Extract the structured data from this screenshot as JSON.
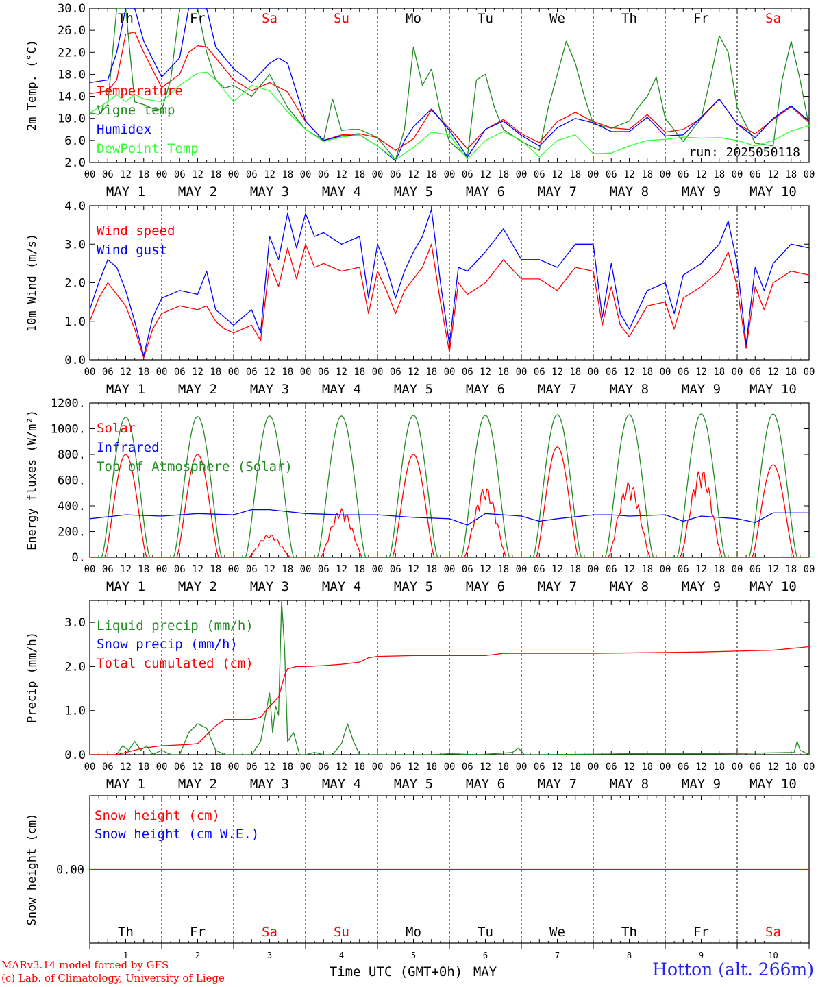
{
  "chart_data": [
    {
      "type": "line",
      "ylabel": "2m Temp. (°C)",
      "ylim": [
        2,
        30
      ],
      "yticks": [
        "2.0",
        "6.0",
        "10.0",
        "14.0",
        "18.0",
        "22.0",
        "26.0",
        "30.0"
      ],
      "legend": [
        "Temperature",
        "Vigne temp",
        "Humidex",
        "DewPoint Temp"
      ],
      "annotation": "run: 2025050118",
      "x_unit": "hours since May 1 00 UTC",
      "series": [
        {
          "name": "Temperature",
          "color": "#ff0000",
          "x": [
            0,
            6,
            9,
            12,
            15,
            18,
            24,
            30,
            33,
            36,
            39,
            42,
            48,
            54,
            60,
            66,
            72,
            78,
            84,
            90,
            96,
            102,
            108,
            114,
            120,
            126,
            132,
            138,
            144,
            150,
            156,
            162,
            168,
            174,
            180,
            186,
            192,
            198,
            204,
            210,
            216,
            222,
            228,
            234,
            240
          ],
          "values": [
            14.5,
            15,
            17,
            25.3,
            25.7,
            22,
            15.6,
            18,
            22,
            23.2,
            23,
            21,
            17,
            15,
            16.5,
            14.8,
            9.4,
            6,
            7,
            7.2,
            6.5,
            4.2,
            6.3,
            11.5,
            8.2,
            4.5,
            8,
            9.8,
            7.2,
            5.6,
            9.4,
            11.1,
            9.4,
            8.3,
            8,
            10.7,
            7.5,
            8,
            10,
            13.5,
            9,
            7.2,
            9.8,
            12.1,
            9.2
          ]
        },
        {
          "name": "Vigne temp",
          "color": "#228b22",
          "x": [
            0,
            3,
            6,
            9,
            12,
            15,
            18,
            21,
            24,
            27,
            30,
            33,
            36,
            39,
            42,
            45,
            48,
            54,
            60,
            63,
            66,
            72,
            78,
            81,
            84,
            87,
            90,
            96,
            102,
            105,
            108,
            111,
            114,
            117,
            120,
            126,
            129,
            132,
            135,
            138,
            144,
            150,
            153,
            156,
            159,
            162,
            165,
            168,
            174,
            180,
            183,
            186,
            189,
            192,
            198,
            204,
            207,
            210,
            213,
            216,
            222,
            228,
            231,
            234,
            237,
            240
          ],
          "values": [
            11,
            10.7,
            12.5,
            30,
            30,
            13,
            12.5,
            11.8,
            11.5,
            17,
            30,
            30,
            30,
            22,
            17,
            15.5,
            16,
            14,
            18,
            15,
            12,
            8,
            6,
            13.5,
            7.8,
            8,
            8,
            6.5,
            2.5,
            8,
            23,
            16,
            19,
            11,
            5.8,
            3,
            17,
            18,
            12,
            8,
            5.8,
            4.2,
            12,
            18,
            24,
            20,
            14,
            9,
            8.2,
            9.5,
            12,
            14,
            17.5,
            10,
            5.8,
            10,
            17,
            25,
            22,
            12,
            5.5,
            5,
            17,
            24,
            17,
            8.5
          ]
        },
        {
          "name": "Humidex",
          "color": "#0000ff",
          "x": [
            0,
            6,
            9,
            12,
            15,
            18,
            24,
            30,
            33,
            36,
            39,
            42,
            48,
            54,
            60,
            63,
            66,
            72,
            78,
            84,
            90,
            96,
            102,
            105,
            108,
            114,
            120,
            126,
            132,
            138,
            144,
            150,
            156,
            162,
            168,
            174,
            180,
            186,
            192,
            198,
            204,
            210,
            216,
            222,
            228,
            234,
            240
          ],
          "values": [
            16.5,
            17,
            22,
            30,
            30,
            24,
            17.5,
            21,
            30,
            30,
            30,
            23,
            19,
            16.5,
            20,
            21,
            20,
            9.5,
            6,
            6.8,
            7,
            5,
            2.3,
            6,
            8.5,
            11.7,
            7.8,
            3,
            8,
            9.5,
            6.9,
            5,
            8.3,
            10,
            9.2,
            7.6,
            7.6,
            10.2,
            6.8,
            7,
            10.2,
            13.5,
            9,
            6.5,
            10,
            12.3,
            9.5
          ]
        },
        {
          "name": "DewPoint Temp",
          "color": "#33ff33",
          "x": [
            0,
            6,
            9,
            12,
            15,
            18,
            24,
            30,
            36,
            39,
            42,
            48,
            54,
            60,
            66,
            72,
            78,
            84,
            90,
            96,
            102,
            108,
            114,
            120,
            126,
            132,
            138,
            144,
            150,
            156,
            162,
            168,
            174,
            180,
            186,
            192,
            198,
            204,
            210,
            216,
            222,
            228,
            234,
            240
          ],
          "values": [
            11,
            13,
            14.3,
            13,
            14.4,
            13.5,
            13,
            16,
            18.2,
            18.4,
            17,
            13,
            16,
            15,
            11.2,
            8,
            5.8,
            6.6,
            7,
            5,
            2.5,
            4.7,
            7.5,
            7,
            2.6,
            6,
            7.6,
            6,
            3,
            6,
            7,
            3.6,
            3.7,
            5,
            6,
            6.2,
            6.6,
            6.4,
            6.5,
            6,
            5,
            6,
            7.7,
            8.7
          ]
        }
      ]
    },
    {
      "type": "line",
      "ylabel": "10m Wind (m/s)",
      "ylim": [
        0,
        4
      ],
      "yticks": [
        "0.0",
        "1.0",
        "2.0",
        "3.0",
        "4.0"
      ],
      "legend": [
        "Wind speed",
        "Wind gust"
      ],
      "x_unit": "hours since May 1 00 UTC",
      "series": [
        {
          "name": "Wind speed",
          "color": "#ff0000",
          "x": [
            0,
            3,
            6,
            9,
            12,
            15,
            18,
            21,
            24,
            30,
            36,
            39,
            42,
            45,
            48,
            51,
            54,
            57,
            60,
            63,
            66,
            69,
            72,
            75,
            78,
            84,
            90,
            93,
            96,
            99,
            102,
            105,
            108,
            111,
            114,
            117,
            120,
            123,
            126,
            132,
            138,
            144,
            150,
            156,
            162,
            168,
            171,
            174,
            177,
            180,
            186,
            192,
            195,
            198,
            204,
            210,
            213,
            216,
            219,
            222,
            225,
            228,
            234,
            240
          ],
          "values": [
            1.0,
            1.6,
            2.0,
            1.7,
            1.4,
            0.8,
            0.05,
            0.8,
            1.2,
            1.4,
            1.3,
            1.4,
            1.0,
            0.8,
            0.7,
            0.8,
            0.9,
            0.5,
            2.5,
            1.9,
            2.9,
            2.1,
            3.0,
            2.4,
            2.5,
            2.3,
            2.4,
            1.2,
            2.3,
            1.8,
            1.2,
            1.8,
            2.1,
            2.4,
            3.0,
            1.5,
            0.2,
            2.0,
            1.7,
            2.0,
            2.6,
            2.1,
            2.1,
            1.8,
            2.4,
            2.3,
            0.9,
            1.9,
            0.9,
            0.6,
            1.4,
            1.5,
            0.8,
            1.6,
            1.9,
            2.3,
            2.8,
            1.9,
            0.3,
            1.9,
            1.3,
            2.0,
            2.3,
            2.2
          ]
        },
        {
          "name": "Wind gust",
          "color": "#0000ff",
          "x": [
            0,
            3,
            6,
            9,
            12,
            15,
            18,
            21,
            24,
            30,
            36,
            39,
            42,
            45,
            48,
            51,
            54,
            57,
            60,
            63,
            66,
            69,
            72,
            75,
            78,
            84,
            90,
            93,
            96,
            99,
            102,
            105,
            108,
            111,
            114,
            117,
            120,
            123,
            126,
            132,
            138,
            144,
            150,
            156,
            162,
            168,
            171,
            174,
            177,
            180,
            186,
            192,
            195,
            198,
            204,
            210,
            213,
            216,
            219,
            222,
            225,
            228,
            234,
            240
          ],
          "values": [
            1.3,
            2.0,
            2.6,
            2.4,
            1.8,
            1.0,
            0.1,
            1.1,
            1.6,
            1.8,
            1.7,
            2.3,
            1.3,
            1.1,
            0.9,
            1.1,
            1.3,
            0.7,
            3.2,
            2.6,
            3.8,
            2.9,
            3.8,
            3.2,
            3.3,
            3.0,
            3.2,
            1.6,
            3.0,
            2.4,
            1.6,
            2.3,
            2.8,
            3.2,
            3.9,
            2.0,
            0.4,
            2.4,
            2.3,
            2.8,
            3.4,
            2.6,
            2.6,
            2.4,
            3.0,
            3.0,
            1.1,
            2.5,
            1.2,
            0.8,
            1.8,
            2.0,
            1.2,
            2.2,
            2.5,
            3.0,
            3.6,
            2.5,
            0.4,
            2.4,
            1.8,
            2.5,
            3.0,
            2.9
          ]
        }
      ]
    },
    {
      "type": "line",
      "ylabel": "Energy fluxes (W/m²)",
      "ylim": [
        0,
        1200
      ],
      "yticks": [
        "0.",
        "200.",
        "400.",
        "600.",
        "800.",
        "1000.",
        "1200."
      ],
      "legend": [
        "Solar",
        "Infrared",
        "Top of Atmosphere (Solar)"
      ],
      "x_unit": "hours since May 1 00 UTC",
      "toa_daily_peak": [
        1090,
        1095,
        1100,
        1100,
        1105,
        1105,
        1110,
        1110,
        1115,
        1115
      ],
      "solar_daily_peak": [
        800,
        800,
        180,
        380,
        800,
        550,
        860,
        590,
        690,
        720
      ],
      "series": [
        {
          "name": "Infrared",
          "color": "#0000ff",
          "x": [
            0,
            12,
            24,
            36,
            48,
            54,
            60,
            72,
            84,
            90,
            96,
            108,
            120,
            126,
            132,
            144,
            150,
            156,
            168,
            174,
            180,
            192,
            198,
            204,
            216,
            222,
            228,
            240
          ],
          "values": [
            300,
            330,
            320,
            340,
            330,
            370,
            370,
            340,
            330,
            330,
            330,
            310,
            300,
            250,
            340,
            320,
            280,
            300,
            330,
            330,
            320,
            330,
            280,
            320,
            300,
            270,
            345,
            345
          ]
        }
      ]
    },
    {
      "type": "line",
      "ylabel": "Precip (mm/h)",
      "ylim": [
        0,
        3.5
      ],
      "yticks": [
        "0.0",
        "1.0",
        "2.0",
        "3.0"
      ],
      "legend": [
        "Liquid precip (mm/h)",
        "Snow precip (mm/h)",
        "Total cumulated (cm)"
      ],
      "x_unit": "hours since May 1 00 UTC",
      "series": [
        {
          "name": "Liquid precip (mm/h)",
          "color": "#228b22",
          "x": [
            0,
            9,
            11,
            13,
            15,
            17,
            19,
            21,
            24,
            27,
            30,
            33,
            36,
            39,
            42,
            45,
            48,
            51,
            54,
            57,
            60,
            61,
            62,
            63,
            64,
            65,
            66,
            68,
            70,
            72,
            75,
            78,
            81,
            84,
            86,
            88,
            90,
            92,
            96,
            110,
            112,
            114,
            120,
            130,
            141,
            143,
            145,
            150,
            180,
            210,
            235,
            236,
            237,
            240
          ],
          "values": [
            0,
            0,
            0.2,
            0.1,
            0.3,
            0.1,
            0.2,
            0,
            0.1,
            0,
            0,
            0.5,
            0.7,
            0.6,
            0.1,
            0,
            0,
            0,
            0,
            0.3,
            1.4,
            0.5,
            1.1,
            0.9,
            3.5,
            2.4,
            0.3,
            0.5,
            0,
            0,
            0.05,
            0,
            0,
            0.25,
            0.7,
            0.3,
            0,
            0,
            0,
            0,
            0,
            0,
            0.02,
            0,
            0.05,
            0.15,
            0,
            0,
            0.02,
            0.02,
            0.05,
            0.3,
            0.1,
            0
          ]
        },
        {
          "name": "Total cumulated (cm)",
          "color": "#ff0000",
          "x": [
            0,
            9,
            12,
            18,
            24,
            30,
            33,
            36,
            39,
            42,
            45,
            48,
            54,
            57,
            60,
            63,
            65,
            66,
            69,
            72,
            78,
            84,
            90,
            93,
            96,
            108,
            120,
            132,
            138,
            144,
            150,
            168,
            192,
            204,
            216,
            228,
            240
          ],
          "values": [
            0,
            0,
            0.05,
            0.15,
            0.2,
            0.22,
            0.23,
            0.25,
            0.45,
            0.65,
            0.8,
            0.8,
            0.8,
            0.85,
            1.1,
            1.3,
            1.8,
            1.95,
            2.0,
            2.0,
            2.02,
            2.05,
            2.1,
            2.2,
            2.23,
            2.25,
            2.25,
            2.25,
            2.3,
            2.3,
            2.3,
            2.3,
            2.32,
            2.33,
            2.35,
            2.37,
            2.45
          ]
        }
      ]
    },
    {
      "type": "line",
      "ylabel": "Snow height (cm)",
      "ylim": [
        -1,
        1
      ],
      "yticks": [
        "0.00"
      ],
      "legend": [
        "Snow height (cm)",
        "Snow height (cm W.E.)"
      ],
      "x_unit": "hours since May 1 00 UTC",
      "series": [
        {
          "name": "Snow height (cm)",
          "color": "#ff0000",
          "x": [
            0,
            240
          ],
          "values": [
            0,
            0
          ]
        }
      ]
    }
  ],
  "x_axis": {
    "hour_ticks": [
      "00",
      "06",
      "12",
      "18"
    ],
    "end_tick": "00",
    "date_labels": [
      "MAY  1",
      "MAY  2",
      "MAY  3",
      "MAY  4",
      "MAY  5",
      "MAY  6",
      "MAY  7",
      "MAY  8",
      "MAY  9",
      "MAY 10"
    ],
    "weekdays": [
      "Th",
      "Fr",
      "Sa",
      "Su",
      "Mo",
      "Tu",
      "We",
      "Th",
      "Fr",
      "Sa"
    ],
    "weekday_colors": [
      "#000000",
      "#000000",
      "#ff0000",
      "#ff0000",
      "#000000",
      "#000000",
      "#000000",
      "#000000",
      "#000000",
      "#ff0000"
    ],
    "day_numbers": [
      "1",
      "2",
      "3",
      "4",
      "5",
      "6",
      "7",
      "8",
      "9",
      "10"
    ],
    "title": "Time UTC (GMT+0h)",
    "month": "MAY"
  },
  "footer": {
    "model_credit": "MARv3.14 model forced by GFS",
    "lab_credit": "(c) Lab. of Climatology, University of Liege",
    "station": "Hotton (alt. 266m)"
  }
}
